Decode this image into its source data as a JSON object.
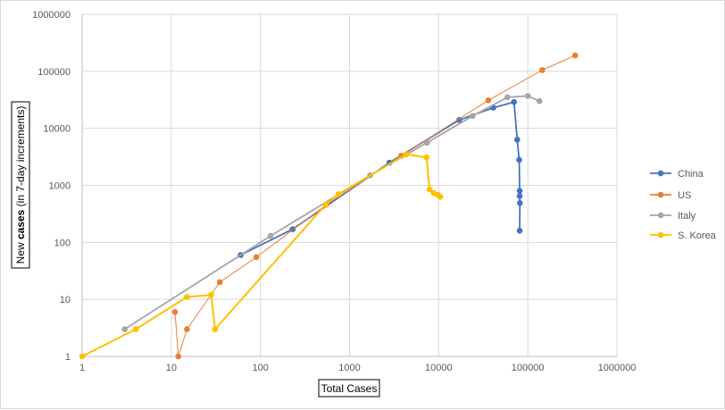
{
  "chart_data": {
    "type": "line",
    "xscale": "log",
    "yscale": "log",
    "xlim": [
      1,
      1000000
    ],
    "ylim": [
      1,
      1000000
    ],
    "xlabel": "Total Cases",
    "ylabel_parts": [
      "New ",
      "cases",
      " (in 7-day increments)"
    ],
    "x_ticks": [
      "1",
      "10",
      "100",
      "1000",
      "10000",
      "100000",
      "1000000"
    ],
    "y_ticks": [
      "1",
      "10",
      "100",
      "1000",
      "10000",
      "100000",
      "1000000"
    ],
    "grid": true,
    "legend_position": "right",
    "series": [
      {
        "name": "China",
        "color": "#4472C4",
        "points": [
          [
            60,
            60
          ],
          [
            230,
            170
          ],
          [
            2800,
            2500
          ],
          [
            17000,
            14000
          ],
          [
            41000,
            23000
          ],
          [
            70000,
            29000
          ],
          [
            76000,
            6300
          ],
          [
            80000,
            2800
          ],
          [
            81000,
            800
          ],
          [
            81000,
            650
          ],
          [
            81500,
            490
          ],
          [
            81000,
            160
          ]
        ]
      },
      {
        "name": "US",
        "color": "#ED7D31",
        "points": [
          [
            11,
            6
          ],
          [
            12,
            1
          ],
          [
            15,
            3
          ],
          [
            35,
            20
          ],
          [
            90,
            55
          ],
          [
            550,
            460
          ],
          [
            3800,
            3300
          ],
          [
            36000,
            31000
          ],
          [
            145000,
            105000
          ],
          [
            340000,
            190000
          ]
        ]
      },
      {
        "name": "Italy",
        "color": "#A5A5A5",
        "points": [
          [
            3,
            3
          ],
          [
            130,
            130
          ],
          [
            1700,
            1500
          ],
          [
            7400,
            5600
          ],
          [
            24000,
            16500
          ],
          [
            59000,
            35000
          ],
          [
            100000,
            37000
          ],
          [
            135000,
            30000
          ]
        ]
      },
      {
        "name": "S. Korea",
        "color": "#FFC000",
        "points": [
          [
            1,
            1
          ],
          [
            4,
            3
          ],
          [
            15,
            11
          ],
          [
            28,
            12
          ],
          [
            31,
            3
          ],
          [
            540,
            460
          ],
          [
            750,
            700
          ],
          [
            4300,
            3500
          ],
          [
            7300,
            3100
          ],
          [
            7900,
            850
          ],
          [
            8800,
            730
          ],
          [
            9800,
            680
          ],
          [
            10400,
            630
          ]
        ]
      }
    ]
  }
}
